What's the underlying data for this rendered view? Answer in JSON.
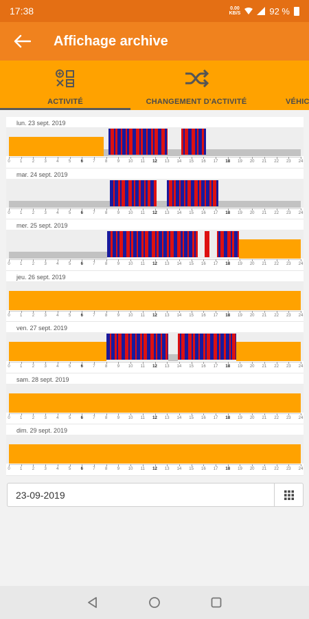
{
  "status_bar": {
    "time": "17:38",
    "net_speed_value": "0.00",
    "net_speed_unit": "KB/S",
    "battery": "92 %"
  },
  "app_bar": {
    "title": "Affichage archive",
    "back_icon": "arrow-left-icon"
  },
  "tabs": [
    {
      "label": "ACTIVITÉ",
      "icon": "tools-icon",
      "selected": true
    },
    {
      "label": "CHANGEMENT D'ACTIVITÉ",
      "icon": "shuffle-icon",
      "selected": false
    },
    {
      "label": "VÉHIC",
      "icon": "",
      "selected": false
    }
  ],
  "colors": {
    "orange": "#ffa200",
    "red": "#dd1111",
    "blue": "#1a1a9c",
    "gray": "#c2c2c2",
    "band": "#eeeeee"
  },
  "timeline": {
    "hours": [
      0,
      1,
      2,
      3,
      4,
      5,
      6,
      7,
      8,
      9,
      10,
      11,
      12,
      13,
      14,
      15,
      16,
      17,
      18,
      19,
      20,
      21,
      22,
      23,
      24
    ],
    "major_hours": [
      6,
      12,
      18
    ]
  },
  "days": [
    {
      "label": "lun. 23 sept. 2019",
      "segments": [
        {
          "start": 0,
          "end": 7.8,
          "level": "low",
          "color": "orange"
        },
        {
          "start": 7.8,
          "end": 24,
          "level": "thin",
          "color": "gray"
        },
        {
          "start": 8.2,
          "end": 13,
          "level": "high",
          "color": "mix"
        },
        {
          "start": 14.2,
          "end": 16.2,
          "level": "high",
          "color": "mix"
        }
      ]
    },
    {
      "label": "mar. 24 sept. 2019",
      "segments": [
        {
          "start": 0,
          "end": 24,
          "level": "thin",
          "color": "gray"
        },
        {
          "start": 8.3,
          "end": 12.1,
          "level": "high",
          "color": "mix"
        },
        {
          "start": 13,
          "end": 17.2,
          "level": "high",
          "color": "mix"
        }
      ]
    },
    {
      "label": "mer. 25 sept. 2019",
      "segments": [
        {
          "start": 0,
          "end": 8.1,
          "level": "thin",
          "color": "gray"
        },
        {
          "start": 8.1,
          "end": 15.5,
          "level": "high",
          "color": "mix"
        },
        {
          "start": 16.1,
          "end": 16.5,
          "level": "high",
          "color": "red"
        },
        {
          "start": 17.1,
          "end": 18.9,
          "level": "high",
          "color": "mix"
        },
        {
          "start": 18.9,
          "end": 24,
          "level": "low",
          "color": "orange"
        }
      ]
    },
    {
      "label": "jeu. 26 sept. 2019",
      "segments": [
        {
          "start": 0,
          "end": 24,
          "level": "low",
          "color": "orange"
        }
      ]
    },
    {
      "label": "ven. 27 sept. 2019",
      "segments": [
        {
          "start": 0,
          "end": 8,
          "level": "low",
          "color": "orange"
        },
        {
          "start": 8,
          "end": 13.1,
          "level": "high",
          "color": "mix"
        },
        {
          "start": 13.1,
          "end": 13.9,
          "level": "thin",
          "color": "gray"
        },
        {
          "start": 13.9,
          "end": 18.7,
          "level": "high",
          "color": "mix"
        },
        {
          "start": 18.7,
          "end": 24,
          "level": "low",
          "color": "orange"
        }
      ]
    },
    {
      "label": "sam. 28 sept. 2019",
      "segments": [
        {
          "start": 0,
          "end": 24,
          "level": "low",
          "color": "orange"
        }
      ]
    },
    {
      "label": "dim. 29 sept. 2019",
      "segments": [
        {
          "start": 0,
          "end": 24,
          "level": "low",
          "color": "orange"
        }
      ]
    }
  ],
  "date_input": {
    "value": "23-09-2019",
    "button_icon": "calendar-grid-icon"
  },
  "nav_bar": {
    "back_icon": "triangle-back-icon",
    "home_icon": "circle-home-icon",
    "recents_icon": "square-recents-icon"
  }
}
